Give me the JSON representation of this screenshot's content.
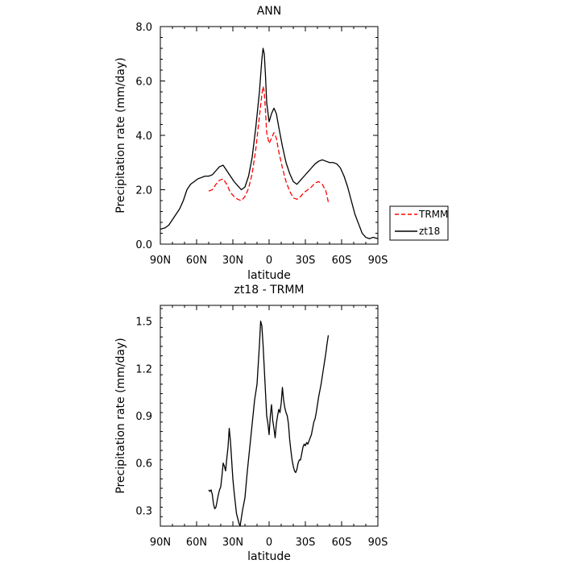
{
  "chart_data": [
    {
      "type": "line",
      "title": "ANN",
      "xlabel": "latitude",
      "ylabel": "Precipitation rate (mm/day)",
      "xlim": [
        -90,
        90
      ],
      "ylim": [
        0,
        8
      ],
      "x_axis_note": "latitude from 90N (left) to 90S (right)",
      "x_ticks": [
        {
          "value": -90,
          "label": "90N"
        },
        {
          "value": -60,
          "label": "60N"
        },
        {
          "value": -30,
          "label": "30N"
        },
        {
          "value": 0,
          "label": "0"
        },
        {
          "value": 30,
          "label": "30S"
        },
        {
          "value": 60,
          "label": "60S"
        },
        {
          "value": 90,
          "label": "90S"
        }
      ],
      "y_ticks": [
        {
          "value": 0,
          "label": "0.0"
        },
        {
          "value": 2,
          "label": "2.0"
        },
        {
          "value": 4,
          "label": "4.0"
        },
        {
          "value": 6,
          "label": "6.0"
        },
        {
          "value": 8,
          "label": "8.0"
        }
      ],
      "grid": false,
      "legend": "outside right",
      "series": [
        {
          "name": "TRMM",
          "color": "#ff0000",
          "dash": "dashed",
          "points": [
            [
              -50,
              1.95
            ],
            [
              -47,
              2.0
            ],
            [
              -44,
              2.2
            ],
            [
              -41,
              2.35
            ],
            [
              -38,
              2.4
            ],
            [
              -35,
              2.2
            ],
            [
              -32,
              1.9
            ],
            [
              -29,
              1.75
            ],
            [
              -26,
              1.65
            ],
            [
              -23,
              1.6
            ],
            [
              -20,
              1.75
            ],
            [
              -17,
              2.05
            ],
            [
              -14,
              2.6
            ],
            [
              -11,
              3.5
            ],
            [
              -8,
              4.7
            ],
            [
              -6,
              5.5
            ],
            [
              -5,
              5.8
            ],
            [
              -4,
              5.6
            ],
            [
              -3,
              4.9
            ],
            [
              -2,
              4.1
            ],
            [
              0,
              3.7
            ],
            [
              2,
              3.9
            ],
            [
              4,
              4.1
            ],
            [
              6,
              3.9
            ],
            [
              8,
              3.4
            ],
            [
              11,
              2.8
            ],
            [
              14,
              2.3
            ],
            [
              17,
              1.95
            ],
            [
              20,
              1.7
            ],
            [
              23,
              1.65
            ],
            [
              26,
              1.75
            ],
            [
              29,
              1.9
            ],
            [
              32,
              2.0
            ],
            [
              35,
              2.1
            ],
            [
              38,
              2.25
            ],
            [
              41,
              2.3
            ],
            [
              44,
              2.2
            ],
            [
              47,
              1.95
            ],
            [
              49,
              1.55
            ]
          ]
        },
        {
          "name": "zt18",
          "color": "#000000",
          "dash": "solid",
          "points": [
            [
              -90,
              0.55
            ],
            [
              -86,
              0.6
            ],
            [
              -83,
              0.7
            ],
            [
              -80,
              0.9
            ],
            [
              -77,
              1.1
            ],
            [
              -74,
              1.3
            ],
            [
              -71,
              1.6
            ],
            [
              -68,
              2.0
            ],
            [
              -65,
              2.2
            ],
            [
              -62,
              2.3
            ],
            [
              -59,
              2.4
            ],
            [
              -56,
              2.45
            ],
            [
              -53,
              2.5
            ],
            [
              -50,
              2.5
            ],
            [
              -47,
              2.55
            ],
            [
              -44,
              2.7
            ],
            [
              -41,
              2.85
            ],
            [
              -38,
              2.9
            ],
            [
              -35,
              2.7
            ],
            [
              -32,
              2.5
            ],
            [
              -29,
              2.3
            ],
            [
              -26,
              2.15
            ],
            [
              -23,
              2.0
            ],
            [
              -20,
              2.1
            ],
            [
              -17,
              2.5
            ],
            [
              -14,
              3.2
            ],
            [
              -11,
              4.3
            ],
            [
              -8,
              5.6
            ],
            [
              -6,
              6.8
            ],
            [
              -5,
              7.2
            ],
            [
              -4,
              7.0
            ],
            [
              -3,
              6.2
            ],
            [
              -2,
              5.2
            ],
            [
              0,
              4.5
            ],
            [
              2,
              4.8
            ],
            [
              4,
              5.0
            ],
            [
              6,
              4.8
            ],
            [
              8,
              4.3
            ],
            [
              11,
              3.6
            ],
            [
              14,
              3.0
            ],
            [
              17,
              2.6
            ],
            [
              20,
              2.3
            ],
            [
              23,
              2.2
            ],
            [
              26,
              2.35
            ],
            [
              29,
              2.5
            ],
            [
              32,
              2.65
            ],
            [
              35,
              2.8
            ],
            [
              38,
              2.95
            ],
            [
              41,
              3.05
            ],
            [
              44,
              3.1
            ],
            [
              47,
              3.05
            ],
            [
              50,
              3.0
            ],
            [
              53,
              3.0
            ],
            [
              56,
              2.95
            ],
            [
              59,
              2.8
            ],
            [
              62,
              2.5
            ],
            [
              65,
              2.1
            ],
            [
              68,
              1.6
            ],
            [
              71,
              1.1
            ],
            [
              74,
              0.75
            ],
            [
              77,
              0.4
            ],
            [
              80,
              0.25
            ],
            [
              83,
              0.2
            ],
            [
              86,
              0.25
            ],
            [
              90,
              0.2
            ]
          ]
        }
      ]
    },
    {
      "type": "line",
      "title": "zt18 - TRMM",
      "xlabel": "latitude",
      "ylabel": "Precipitation rate (mm/day)",
      "xlim": [
        -90,
        90
      ],
      "ylim": [
        0.2,
        1.6
      ],
      "x_axis_note": "latitude from 90N (left) to 90S (right)",
      "x_ticks": [
        {
          "value": -90,
          "label": "90N"
        },
        {
          "value": -60,
          "label": "60N"
        },
        {
          "value": -30,
          "label": "30N"
        },
        {
          "value": 0,
          "label": "0"
        },
        {
          "value": 30,
          "label": "30S"
        },
        {
          "value": 60,
          "label": "60S"
        },
        {
          "value": 90,
          "label": "90S"
        }
      ],
      "y_ticks": [
        {
          "value": 0.3,
          "label": "0.3"
        },
        {
          "value": 0.6,
          "label": "0.6"
        },
        {
          "value": 0.9,
          "label": "0.9"
        },
        {
          "value": 1.2,
          "label": "1.2"
        },
        {
          "value": 1.5,
          "label": "1.5"
        }
      ],
      "grid": false,
      "series": [
        {
          "name": "",
          "color": "#000000",
          "dash": "solid",
          "points": [
            [
              -50,
              0.43
            ],
            [
              -49,
              0.42
            ],
            [
              -48,
              0.43
            ],
            [
              -47,
              0.4
            ],
            [
              -46,
              0.34
            ],
            [
              -45,
              0.31
            ],
            [
              -44,
              0.32
            ],
            [
              -43,
              0.36
            ],
            [
              -42,
              0.4
            ],
            [
              -41,
              0.43
            ],
            [
              -40,
              0.45
            ],
            [
              -39,
              0.52
            ],
            [
              -38,
              0.6
            ],
            [
              -37,
              0.58
            ],
            [
              -36,
              0.55
            ],
            [
              -35,
              0.63
            ],
            [
              -34,
              0.7
            ],
            [
              -33,
              0.82
            ],
            [
              -32,
              0.74
            ],
            [
              -31,
              0.62
            ],
            [
              -30,
              0.5
            ],
            [
              -29,
              0.42
            ],
            [
              -28,
              0.35
            ],
            [
              -27,
              0.28
            ],
            [
              -26,
              0.25
            ],
            [
              -25,
              0.22
            ],
            [
              -24,
              0.2
            ],
            [
              -23,
              0.25
            ],
            [
              -22,
              0.3
            ],
            [
              -21,
              0.34
            ],
            [
              -20,
              0.38
            ],
            [
              -18,
              0.55
            ],
            [
              -16,
              0.7
            ],
            [
              -14,
              0.85
            ],
            [
              -12,
              1.0
            ],
            [
              -10,
              1.1
            ],
            [
              -8,
              1.35
            ],
            [
              -7,
              1.5
            ],
            [
              -6,
              1.47
            ],
            [
              -5,
              1.35
            ],
            [
              -4,
              1.2
            ],
            [
              -3,
              1.05
            ],
            [
              -2,
              0.9
            ],
            [
              -1,
              0.85
            ],
            [
              0,
              0.78
            ],
            [
              1,
              0.9
            ],
            [
              2,
              0.97
            ],
            [
              3,
              0.87
            ],
            [
              4,
              0.82
            ],
            [
              5,
              0.76
            ],
            [
              6,
              0.85
            ],
            [
              7,
              0.9
            ],
            [
              8,
              0.94
            ],
            [
              9,
              0.92
            ],
            [
              10,
              0.98
            ],
            [
              11,
              1.08
            ],
            [
              12,
              1.0
            ],
            [
              13,
              0.95
            ],
            [
              14,
              0.92
            ],
            [
              15,
              0.9
            ],
            [
              16,
              0.85
            ],
            [
              17,
              0.75
            ],
            [
              18,
              0.68
            ],
            [
              19,
              0.62
            ],
            [
              20,
              0.58
            ],
            [
              21,
              0.55
            ],
            [
              22,
              0.54
            ],
            [
              23,
              0.56
            ],
            [
              24,
              0.6
            ],
            [
              25,
              0.62
            ],
            [
              26,
              0.62
            ],
            [
              27,
              0.66
            ],
            [
              28,
              0.7
            ],
            [
              29,
              0.72
            ],
            [
              30,
              0.71
            ],
            [
              31,
              0.73
            ],
            [
              32,
              0.72
            ],
            [
              33,
              0.74
            ],
            [
              34,
              0.76
            ],
            [
              35,
              0.78
            ],
            [
              36,
              0.82
            ],
            [
              37,
              0.86
            ],
            [
              38,
              0.88
            ],
            [
              39,
              0.92
            ],
            [
              40,
              0.97
            ],
            [
              41,
              1.02
            ],
            [
              42,
              1.06
            ],
            [
              43,
              1.1
            ],
            [
              44,
              1.15
            ],
            [
              45,
              1.2
            ],
            [
              46,
              1.25
            ],
            [
              47,
              1.3
            ],
            [
              48,
              1.36
            ],
            [
              49,
              1.41
            ]
          ]
        }
      ]
    }
  ]
}
